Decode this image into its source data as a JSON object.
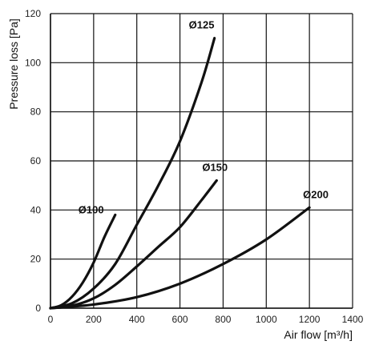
{
  "chart_data": {
    "type": "line",
    "title": "",
    "xlabel": "Air flow [m³/h]",
    "ylabel": "Pressure loss [Pa]",
    "xlim": [
      0,
      1400
    ],
    "ylim": [
      0,
      120
    ],
    "x_ticks": [
      "0",
      "200",
      "400",
      "600",
      "800",
      "1000",
      "1200",
      "1400"
    ],
    "y_ticks": [
      "0",
      "20",
      "40",
      "60",
      "80",
      "100",
      "120"
    ],
    "grid": true,
    "series": [
      {
        "name": "Ø100",
        "x": [
          0,
          50,
          100,
          150,
          200,
          250,
          300
        ],
        "y": [
          0,
          1.2,
          4.7,
          10.5,
          18.6,
          29,
          38
        ]
      },
      {
        "name": "Ø125",
        "x": [
          0,
          100,
          200,
          300,
          400,
          500,
          600,
          700,
          760
        ],
        "y": [
          0,
          2,
          8,
          18,
          34,
          50,
          68,
          92,
          110
        ]
      },
      {
        "name": "Ø150",
        "x": [
          0,
          100,
          200,
          300,
          400,
          500,
          600,
          700,
          770
        ],
        "y": [
          0,
          1,
          4,
          9.5,
          17,
          25,
          33,
          44,
          52
        ]
      },
      {
        "name": "Ø200",
        "x": [
          0,
          200,
          400,
          600,
          800,
          1000,
          1200
        ],
        "y": [
          0,
          1.5,
          4.5,
          10,
          18,
          28,
          41
        ]
      }
    ]
  }
}
